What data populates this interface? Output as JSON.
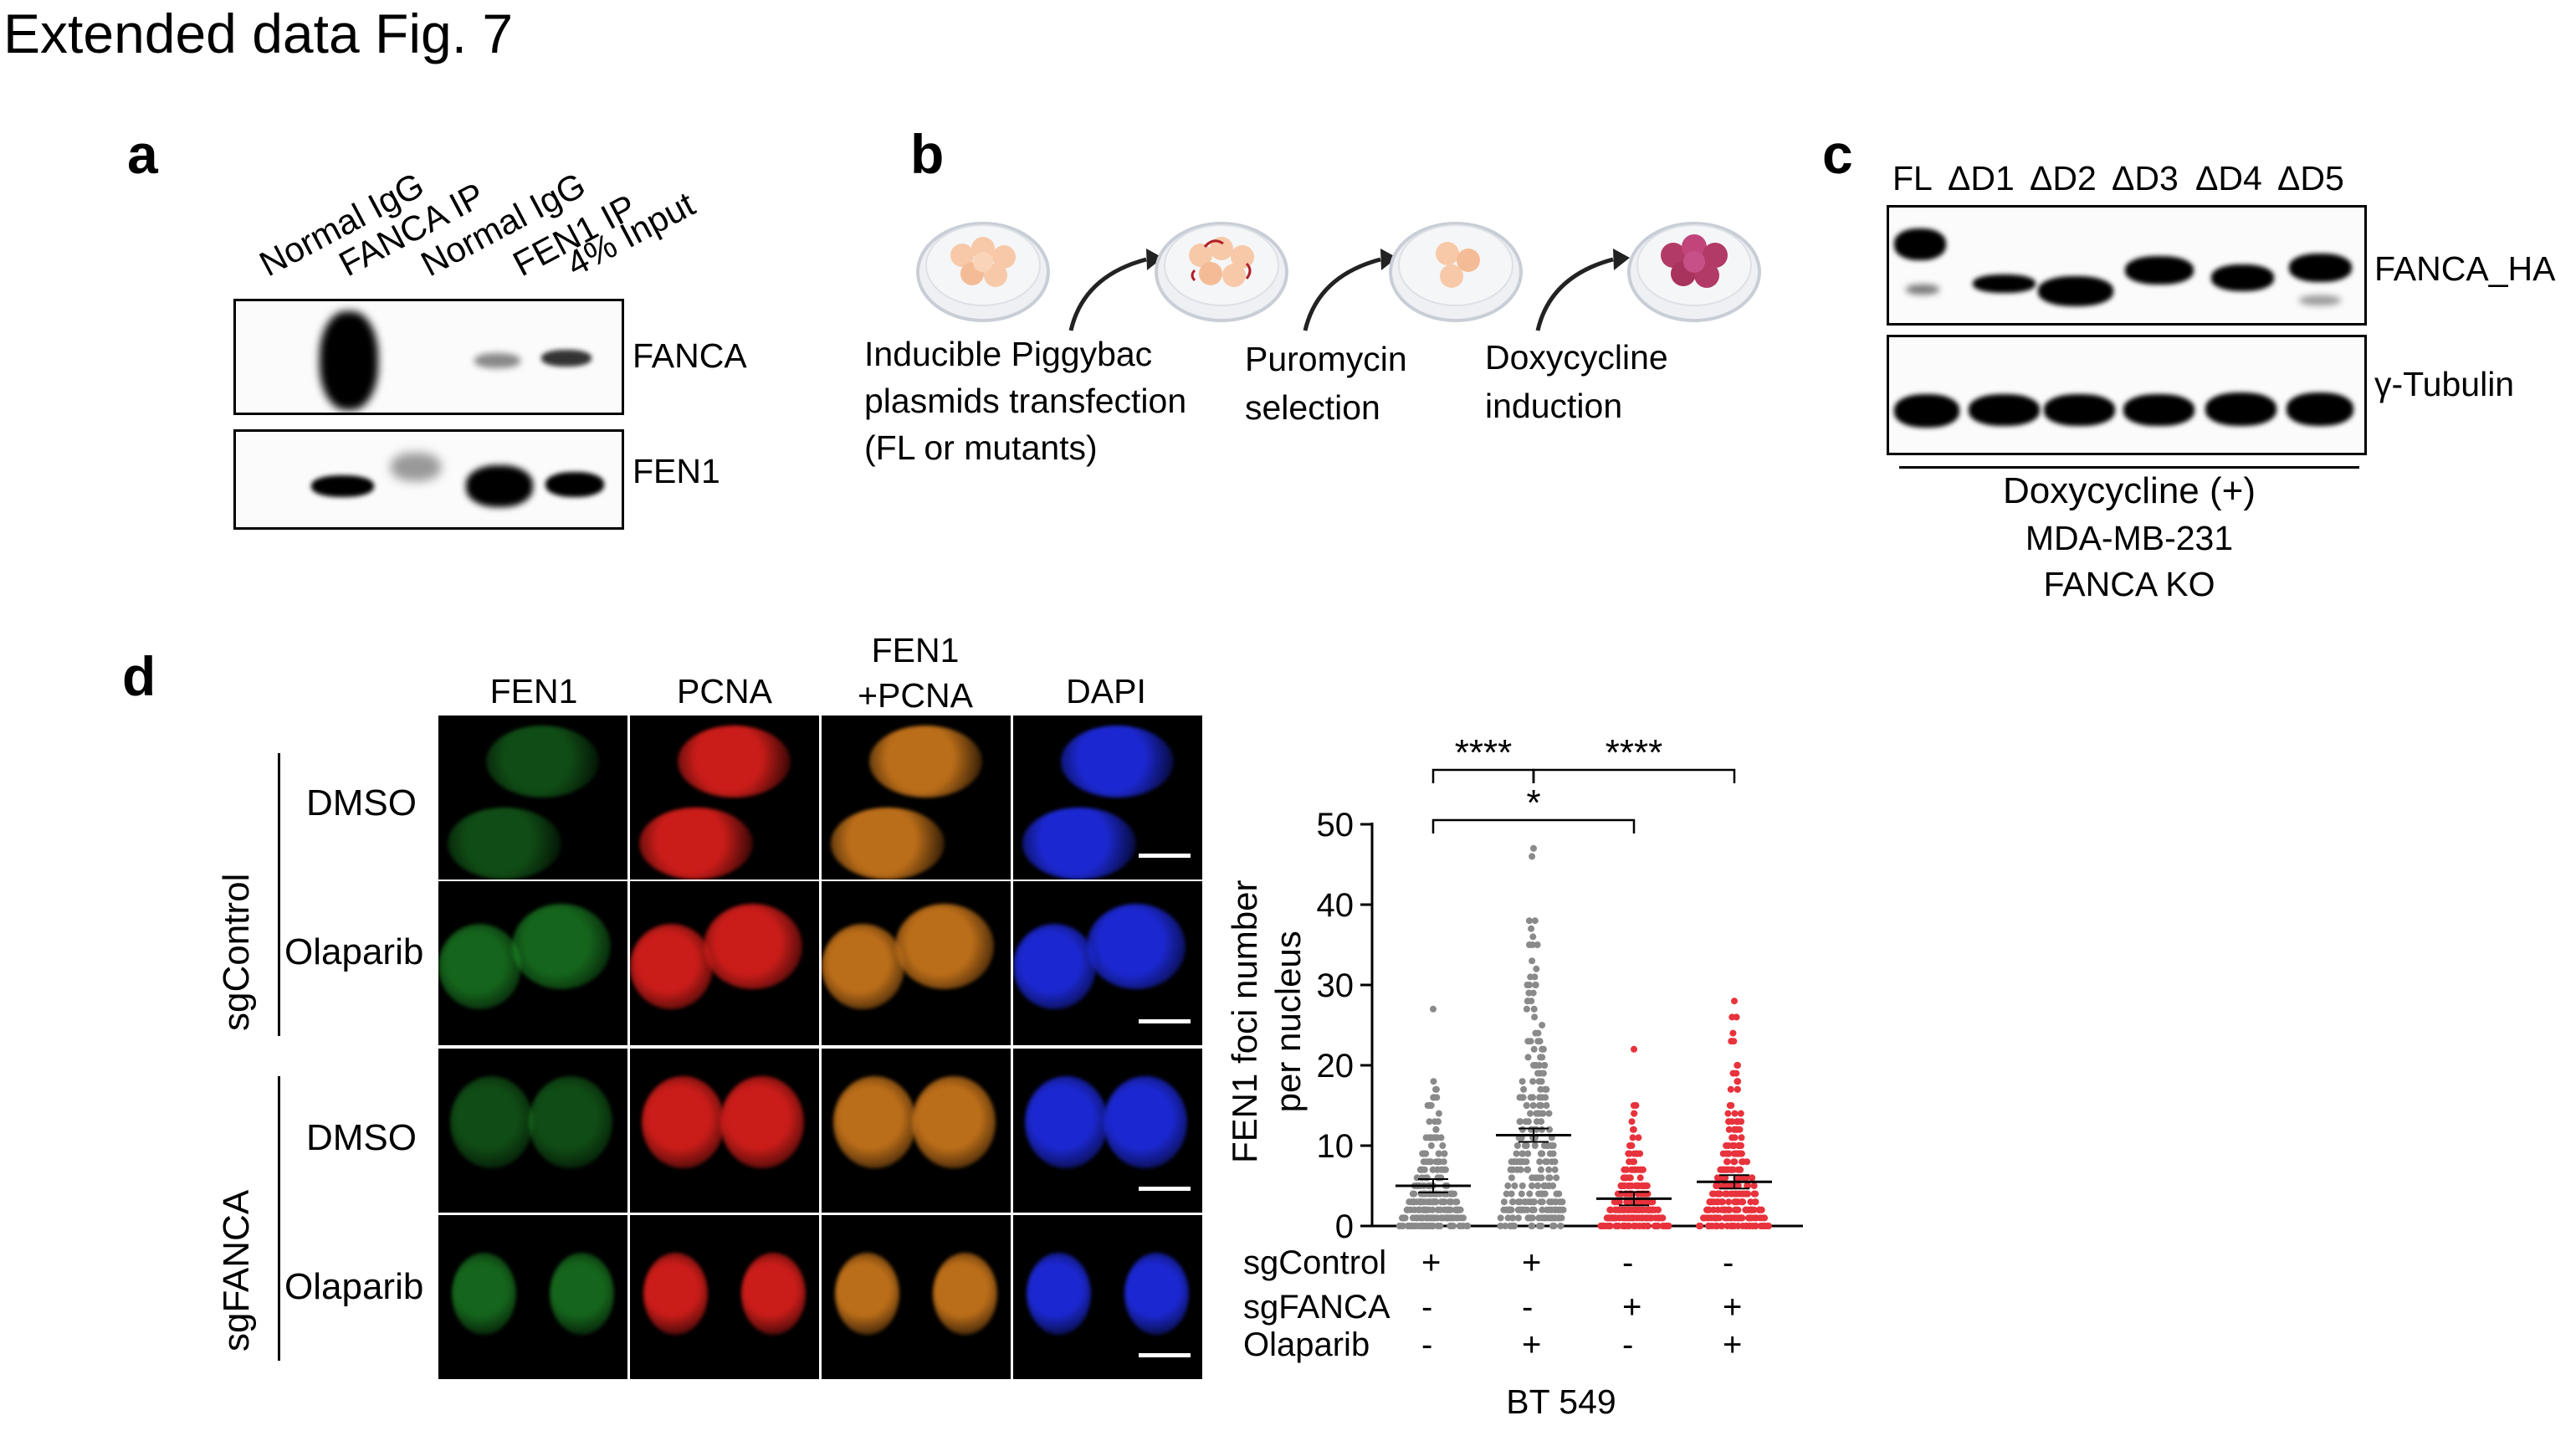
{
  "figure_title": "Extended data Fig. 7",
  "panels": {
    "a": {
      "label": "a",
      "lanes": [
        "Normal IgG",
        "FANCA IP",
        "Normal IgG",
        "FEN1 IP",
        "4% Input"
      ],
      "blots": [
        "FANCA",
        "FEN1"
      ]
    },
    "b": {
      "label": "b",
      "steps": [
        {
          "line1": "Inducible Piggybac",
          "line2": "plasmids transfection",
          "line3": "(FL or mutants)"
        },
        {
          "line1": "Puromycin",
          "line2": "selection"
        },
        {
          "line1": "Doxycycline",
          "line2": "induction"
        }
      ]
    },
    "c": {
      "label": "c",
      "lanes": [
        "FL",
        "ΔD1",
        "ΔD2",
        "ΔD3",
        "ΔD4",
        "ΔD5"
      ],
      "blots": [
        "FANCA_HA",
        "γ-Tubulin"
      ],
      "condition": "Doxycycline (+)",
      "cell_line_1": "MDA-MB-231",
      "cell_line_2": "FANCA KO"
    },
    "d": {
      "label": "d",
      "channels": [
        "FEN1",
        "PCNA",
        "FEN1\n+PCNA",
        "DAPI"
      ],
      "channel_merge_line1": "FEN1",
      "channel_merge_line2": "+PCNA",
      "groups": [
        "sgControl",
        "sgFANCA"
      ],
      "treatments": [
        "DMSO",
        "Olaparib",
        "DMSO",
        "Olaparib"
      ]
    }
  },
  "colors": {
    "gray_points": "#8a8a8a",
    "red_points": "#e8323c",
    "fen1_green": "#27b834",
    "pcna_red": "#e0201c",
    "merge_orange": "#d07a1c",
    "dapi_blue": "#1f2de8"
  },
  "chart_data": {
    "type": "scatter",
    "ylabel_line1": "FEN1 foci number",
    "ylabel_line2": "per nucleus",
    "ylim": [
      0,
      50
    ],
    "yticks": [
      "0",
      "10",
      "20",
      "30",
      "40",
      "50"
    ],
    "conditions": [
      {
        "name": "sgControl",
        "values": [
          "+",
          "+",
          "-",
          "-"
        ]
      },
      {
        "name": "sgFANCA",
        "values": [
          "-",
          "-",
          "+",
          "+"
        ]
      },
      {
        "name": "Olaparib",
        "values": [
          "-",
          "+",
          "-",
          "+"
        ]
      }
    ],
    "groups": [
      {
        "color": "gray",
        "mean": 5,
        "max": 27
      },
      {
        "color": "gray",
        "mean": 11.3,
        "max": 47
      },
      {
        "color": "red",
        "mean": 3.4,
        "max": 22
      },
      {
        "color": "red",
        "mean": 5.5,
        "max": 28
      }
    ],
    "significance": [
      {
        "from": 1,
        "to": 2,
        "label": "****"
      },
      {
        "from": 2,
        "to": 4,
        "label": "****"
      },
      {
        "from": 1,
        "to": 3,
        "label": "*"
      }
    ],
    "cell_line": "BT 549"
  }
}
